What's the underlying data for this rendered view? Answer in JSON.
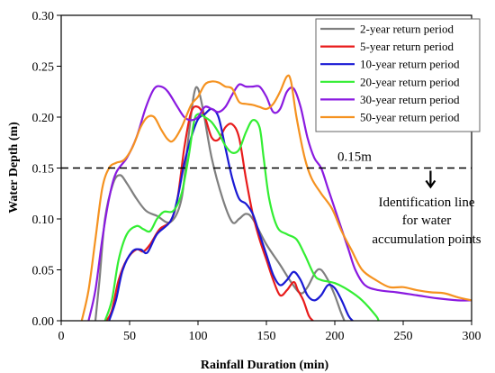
{
  "chart_data": {
    "type": "line",
    "xlabel": "Rainfall Duration (min)",
    "ylabel": "Water Depth (m)",
    "xlim": [
      0,
      300
    ],
    "ylim": [
      0,
      0.3
    ],
    "xticks": [
      0,
      50,
      100,
      150,
      200,
      250,
      300
    ],
    "yticks": [
      0.0,
      0.05,
      0.1,
      0.15,
      0.2,
      0.25,
      0.3
    ],
    "ytick_labels": [
      "0.00",
      "0.05",
      "0.10",
      "0.15",
      "0.20",
      "0.25",
      "0.30"
    ],
    "grid": false,
    "legend_position": "top-right",
    "series": [
      {
        "name": "2-year return period",
        "color": "#7f7f7f",
        "points": [
          [
            25,
            0
          ],
          [
            28,
            0.04
          ],
          [
            32,
            0.1
          ],
          [
            38,
            0.135
          ],
          [
            43,
            0.143
          ],
          [
            48,
            0.135
          ],
          [
            55,
            0.12
          ],
          [
            62,
            0.108
          ],
          [
            70,
            0.103
          ],
          [
            80,
            0.097
          ],
          [
            88,
            0.12
          ],
          [
            93,
            0.18
          ],
          [
            97,
            0.222
          ],
          [
            100,
            0.228
          ],
          [
            104,
            0.205
          ],
          [
            110,
            0.16
          ],
          [
            118,
            0.12
          ],
          [
            125,
            0.097
          ],
          [
            130,
            0.1
          ],
          [
            135,
            0.105
          ],
          [
            140,
            0.1
          ],
          [
            150,
            0.075
          ],
          [
            160,
            0.055
          ],
          [
            168,
            0.038
          ],
          [
            175,
            0.027
          ],
          [
            180,
            0.033
          ],
          [
            186,
            0.048
          ],
          [
            190,
            0.05
          ],
          [
            195,
            0.04
          ],
          [
            200,
            0.025
          ],
          [
            204,
            0.01
          ],
          [
            207,
            0
          ]
        ]
      },
      {
        "name": "5-year return period",
        "color": "#e81c1c",
        "points": [
          [
            33,
            0
          ],
          [
            37,
            0.01
          ],
          [
            42,
            0.04
          ],
          [
            48,
            0.06
          ],
          [
            55,
            0.07
          ],
          [
            60,
            0.068
          ],
          [
            65,
            0.075
          ],
          [
            72,
            0.09
          ],
          [
            80,
            0.098
          ],
          [
            85,
            0.12
          ],
          [
            90,
            0.17
          ],
          [
            95,
            0.205
          ],
          [
            100,
            0.21
          ],
          [
            105,
            0.2
          ],
          [
            110,
            0.18
          ],
          [
            115,
            0.178
          ],
          [
            120,
            0.19
          ],
          [
            125,
            0.193
          ],
          [
            130,
            0.18
          ],
          [
            135,
            0.14
          ],
          [
            140,
            0.105
          ],
          [
            145,
            0.08
          ],
          [
            150,
            0.06
          ],
          [
            155,
            0.04
          ],
          [
            160,
            0.025
          ],
          [
            165,
            0.03
          ],
          [
            170,
            0.038
          ],
          [
            173,
            0.03
          ],
          [
            177,
            0.02
          ],
          [
            181,
            0.005
          ],
          [
            184,
            0
          ]
        ]
      },
      {
        "name": "10-year return period",
        "color": "#1a1ad4",
        "points": [
          [
            35,
            0
          ],
          [
            40,
            0.02
          ],
          [
            45,
            0.05
          ],
          [
            52,
            0.068
          ],
          [
            58,
            0.07
          ],
          [
            63,
            0.067
          ],
          [
            70,
            0.085
          ],
          [
            80,
            0.098
          ],
          [
            85,
            0.12
          ],
          [
            90,
            0.155
          ],
          [
            95,
            0.18
          ],
          [
            100,
            0.198
          ],
          [
            105,
            0.203
          ],
          [
            110,
            0.208
          ],
          [
            115,
            0.2
          ],
          [
            120,
            0.17
          ],
          [
            125,
            0.14
          ],
          [
            130,
            0.12
          ],
          [
            135,
            0.115
          ],
          [
            140,
            0.105
          ],
          [
            145,
            0.085
          ],
          [
            150,
            0.065
          ],
          [
            155,
            0.045
          ],
          [
            160,
            0.035
          ],
          [
            165,
            0.04
          ],
          [
            170,
            0.048
          ],
          [
            175,
            0.04
          ],
          [
            180,
            0.025
          ],
          [
            185,
            0.02
          ],
          [
            190,
            0.025
          ],
          [
            195,
            0.035
          ],
          [
            200,
            0.032
          ],
          [
            205,
            0.02
          ],
          [
            210,
            0.005
          ],
          [
            213,
            0
          ]
        ]
      },
      {
        "name": "20-year return period",
        "color": "#33ee33",
        "points": [
          [
            32,
            0
          ],
          [
            37,
            0.02
          ],
          [
            42,
            0.06
          ],
          [
            48,
            0.085
          ],
          [
            55,
            0.093
          ],
          [
            60,
            0.09
          ],
          [
            65,
            0.088
          ],
          [
            70,
            0.1
          ],
          [
            75,
            0.107
          ],
          [
            82,
            0.108
          ],
          [
            88,
            0.125
          ],
          [
            93,
            0.16
          ],
          [
            97,
            0.195
          ],
          [
            100,
            0.203
          ],
          [
            105,
            0.2
          ],
          [
            110,
            0.195
          ],
          [
            115,
            0.185
          ],
          [
            120,
            0.172
          ],
          [
            125,
            0.165
          ],
          [
            130,
            0.168
          ],
          [
            135,
            0.185
          ],
          [
            140,
            0.197
          ],
          [
            145,
            0.19
          ],
          [
            148,
            0.16
          ],
          [
            152,
            0.12
          ],
          [
            158,
            0.092
          ],
          [
            165,
            0.085
          ],
          [
            172,
            0.08
          ],
          [
            178,
            0.065
          ],
          [
            185,
            0.045
          ],
          [
            190,
            0.04
          ],
          [
            200,
            0.037
          ],
          [
            210,
            0.03
          ],
          [
            220,
            0.02
          ],
          [
            230,
            0.005
          ],
          [
            232,
            0
          ]
        ]
      },
      {
        "name": "30-year return period",
        "color": "#8a1ae0",
        "points": [
          [
            20,
            0
          ],
          [
            25,
            0.03
          ],
          [
            30,
            0.08
          ],
          [
            35,
            0.12
          ],
          [
            40,
            0.145
          ],
          [
            48,
            0.16
          ],
          [
            55,
            0.18
          ],
          [
            62,
            0.21
          ],
          [
            68,
            0.228
          ],
          [
            73,
            0.23
          ],
          [
            78,
            0.225
          ],
          [
            85,
            0.21
          ],
          [
            90,
            0.2
          ],
          [
            95,
            0.197
          ],
          [
            100,
            0.2
          ],
          [
            105,
            0.21
          ],
          [
            110,
            0.208
          ],
          [
            115,
            0.205
          ],
          [
            120,
            0.21
          ],
          [
            125,
            0.222
          ],
          [
            130,
            0.232
          ],
          [
            135,
            0.23
          ],
          [
            140,
            0.23
          ],
          [
            145,
            0.23
          ],
          [
            150,
            0.22
          ],
          [
            155,
            0.205
          ],
          [
            160,
            0.208
          ],
          [
            165,
            0.225
          ],
          [
            170,
            0.228
          ],
          [
            175,
            0.21
          ],
          [
            180,
            0.18
          ],
          [
            185,
            0.16
          ],
          [
            190,
            0.15
          ],
          [
            195,
            0.13
          ],
          [
            200,
            0.11
          ],
          [
            205,
            0.09
          ],
          [
            210,
            0.07
          ],
          [
            215,
            0.05
          ],
          [
            222,
            0.035
          ],
          [
            232,
            0.03
          ],
          [
            245,
            0.028
          ],
          [
            260,
            0.025
          ],
          [
            275,
            0.022
          ],
          [
            290,
            0.02
          ],
          [
            300,
            0.02
          ]
        ]
      },
      {
        "name": "50-year return period",
        "color": "#f59220",
        "points": [
          [
            15,
            0
          ],
          [
            20,
            0.03
          ],
          [
            25,
            0.08
          ],
          [
            30,
            0.13
          ],
          [
            35,
            0.15
          ],
          [
            40,
            0.155
          ],
          [
            46,
            0.158
          ],
          [
            52,
            0.17
          ],
          [
            58,
            0.19
          ],
          [
            63,
            0.2
          ],
          [
            68,
            0.2
          ],
          [
            73,
            0.188
          ],
          [
            78,
            0.178
          ],
          [
            82,
            0.177
          ],
          [
            88,
            0.19
          ],
          [
            95,
            0.212
          ],
          [
            100,
            0.22
          ],
          [
            105,
            0.232
          ],
          [
            110,
            0.235
          ],
          [
            115,
            0.234
          ],
          [
            120,
            0.23
          ],
          [
            125,
            0.228
          ],
          [
            130,
            0.215
          ],
          [
            135,
            0.213
          ],
          [
            140,
            0.212
          ],
          [
            145,
            0.21
          ],
          [
            150,
            0.208
          ],
          [
            155,
            0.213
          ],
          [
            160,
            0.225
          ],
          [
            165,
            0.24
          ],
          [
            168,
            0.235
          ],
          [
            172,
            0.2
          ],
          [
            178,
            0.16
          ],
          [
            183,
            0.14
          ],
          [
            190,
            0.125
          ],
          [
            198,
            0.11
          ],
          [
            205,
            0.088
          ],
          [
            212,
            0.07
          ],
          [
            220,
            0.05
          ],
          [
            230,
            0.04
          ],
          [
            240,
            0.033
          ],
          [
            250,
            0.033
          ],
          [
            260,
            0.03
          ],
          [
            270,
            0.028
          ],
          [
            280,
            0.027
          ],
          [
            290,
            0.023
          ],
          [
            300,
            0.02
          ]
        ]
      }
    ],
    "annotations": {
      "threshold_value": 0.15,
      "threshold_label": "0.15m",
      "identification_text_lines": [
        "Identification line",
        "for water",
        "accumulation points"
      ]
    }
  }
}
